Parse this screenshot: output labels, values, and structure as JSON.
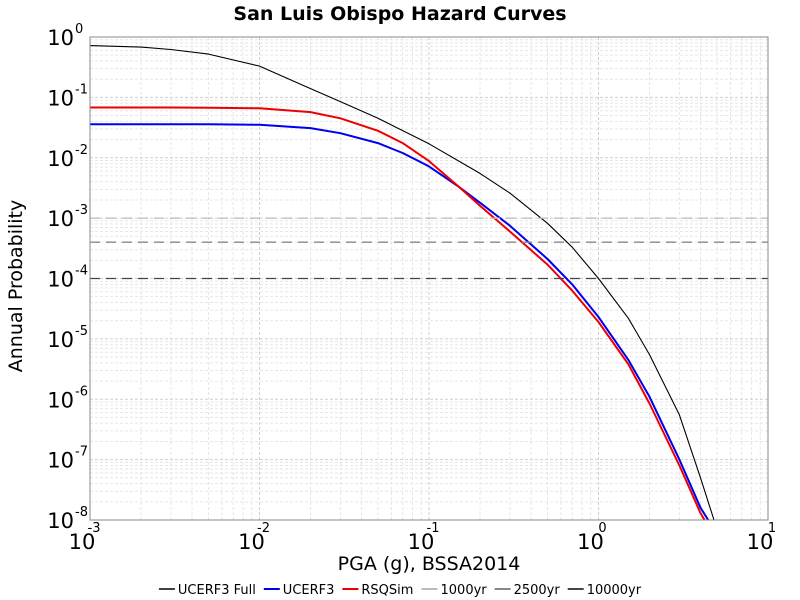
{
  "chart_data": {
    "type": "line",
    "title": "San Luis Obispo Hazard Curves",
    "xlabel": "PGA (g), BSSA2014",
    "ylabel": "Annual Probability",
    "x_scale": "log",
    "y_scale": "log",
    "xlim": [
      0.001,
      10
    ],
    "ylim": [
      1e-08,
      1
    ],
    "grid": true,
    "legend_position": "bottom",
    "tick_base": "10",
    "x_tick_exponents": [
      "-3",
      "-2",
      "-1",
      "0",
      "1"
    ],
    "y_tick_exponents": [
      "0",
      "-1",
      "-2",
      "-3",
      "-4",
      "-5",
      "-6",
      "-7",
      "-8"
    ],
    "series": [
      {
        "name": "UCERF3 Full",
        "color": "#000000",
        "style": "solid",
        "x": [
          0.001,
          0.002,
          0.003,
          0.005,
          0.01,
          0.02,
          0.03,
          0.05,
          0.1,
          0.2,
          0.3,
          0.5,
          0.7,
          1,
          1.5,
          2,
          3,
          4,
          5
        ],
        "y": [
          0.72,
          0.68,
          0.62,
          0.52,
          0.33,
          0.14,
          0.085,
          0.045,
          0.017,
          0.0055,
          0.0026,
          0.00082,
          0.00033,
          0.0001,
          2.2e-05,
          5.5e-06,
          5.5e-07,
          5e-08,
          7e-09
        ]
      },
      {
        "name": "UCERF3",
        "color": "#0000ee",
        "style": "solid",
        "x": [
          0.001,
          0.003,
          0.005,
          0.01,
          0.02,
          0.03,
          0.05,
          0.07,
          0.1,
          0.15,
          0.2,
          0.3,
          0.5,
          0.7,
          1,
          1.5,
          2,
          3,
          4,
          4.8
        ],
        "y": [
          0.036,
          0.036,
          0.0358,
          0.0352,
          0.031,
          0.0255,
          0.0175,
          0.012,
          0.0072,
          0.0033,
          0.0018,
          0.00075,
          0.00021,
          8e-05,
          2.3e-05,
          4.5e-06,
          1.1e-06,
          1e-07,
          1.6e-08,
          7e-09
        ]
      },
      {
        "name": "RSQSim",
        "color": "#ee0000",
        "style": "solid",
        "x": [
          0.001,
          0.003,
          0.005,
          0.01,
          0.02,
          0.03,
          0.05,
          0.07,
          0.1,
          0.15,
          0.2,
          0.3,
          0.5,
          0.7,
          1,
          1.5,
          2,
          3,
          4,
          4.7
        ],
        "y": [
          0.068,
          0.068,
          0.0675,
          0.066,
          0.057,
          0.045,
          0.028,
          0.0175,
          0.0088,
          0.0033,
          0.0016,
          0.0006,
          0.00017,
          6.3e-05,
          1.9e-05,
          3.8e-06,
          8.5e-07,
          8e-08,
          1.3e-08,
          6e-09
        ]
      },
      {
        "name": "1000yr",
        "color": "#bbbbbb",
        "style": "dashed",
        "x": [
          0.001,
          10
        ],
        "y": [
          0.001,
          0.001
        ]
      },
      {
        "name": "2500yr",
        "color": "#888888",
        "style": "dashed",
        "x": [
          0.001,
          10
        ],
        "y": [
          0.0004,
          0.0004
        ]
      },
      {
        "name": "10000yr",
        "color": "#444444",
        "style": "dashed",
        "x": [
          0.001,
          10
        ],
        "y": [
          0.0001,
          0.0001
        ]
      }
    ]
  }
}
